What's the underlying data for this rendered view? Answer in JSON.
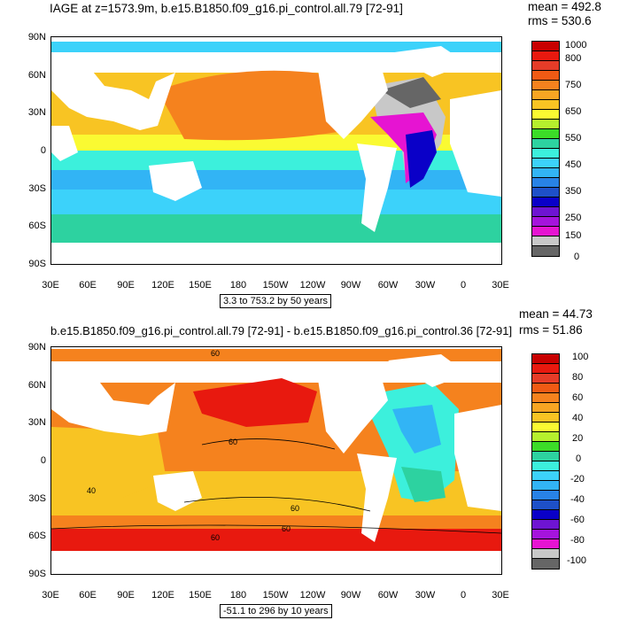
{
  "top": {
    "title": "IAGE at z=1573.9m, b.e15.B1850.f09_g16.pi_control.all.79 [72-91]",
    "mean": "mean = 492.8",
    "rms": "rms = 530.6",
    "range": "3.3 to 753.2 by 50 years",
    "lat_labels": [
      "90N",
      "60N",
      "30N",
      "0",
      "30S",
      "60S",
      "90S"
    ],
    "lon_labels": [
      "30E",
      "60E",
      "90E",
      "120E",
      "150E",
      "180",
      "150W",
      "120W",
      "90W",
      "60W",
      "30W",
      "0",
      "30E"
    ],
    "colorbar": {
      "labels": [
        "1000",
        "800",
        "750",
        "650",
        "550",
        "450",
        "350",
        "250",
        "150",
        "0"
      ],
      "colors": [
        "#c80000",
        "#e8190f",
        "#e63c28",
        "#f05a14",
        "#f5821e",
        "#f7a523",
        "#f8c423",
        "#fafa32",
        "#b6f02d",
        "#3cdc28",
        "#2dd2a0",
        "#3cf0dc",
        "#3cd2fa",
        "#32b4f5",
        "#2882e6",
        "#1e50c8",
        "#0a00c8",
        "#6e14d2",
        "#a514dc",
        "#e614d2",
        "#c8c8c8",
        "#666666"
      ]
    },
    "contour_labels": []
  },
  "bottom": {
    "title": "b.e15.B1850.f09_g16.pi_control.all.79 [72-91] - b.e15.B1850.f09_g16.pi_control.36 [72-91]",
    "mean": "mean = 44.73",
    "rms": "rms = 51.86",
    "range": "-51.1 to 296 by 10 years",
    "lat_labels": [
      "90N",
      "60N",
      "30N",
      "0",
      "30S",
      "60S",
      "90S"
    ],
    "lon_labels": [
      "30E",
      "60E",
      "90E",
      "120E",
      "150E",
      "180",
      "150W",
      "120W",
      "90W",
      "60W",
      "30W",
      "0",
      "30E"
    ],
    "colorbar": {
      "labels": [
        "100",
        "80",
        "60",
        "40",
        "20",
        "0",
        "-20",
        "-40",
        "-60",
        "-80",
        "-100"
      ],
      "colors": [
        "#c80000",
        "#e8190f",
        "#e63c28",
        "#f05a14",
        "#f5821e",
        "#f7a523",
        "#f8c423",
        "#fafa32",
        "#b6f02d",
        "#3cdc28",
        "#2dd2a0",
        "#3cf0dc",
        "#3cd2fa",
        "#32b4f5",
        "#2882e6",
        "#1e50c8",
        "#0a00c8",
        "#6e14d2",
        "#a514dc",
        "#e614d2",
        "#c8c8c8",
        "#666666"
      ]
    },
    "contour_labels": [
      "60",
      "40",
      "60",
      "60",
      "60",
      "60"
    ]
  }
}
